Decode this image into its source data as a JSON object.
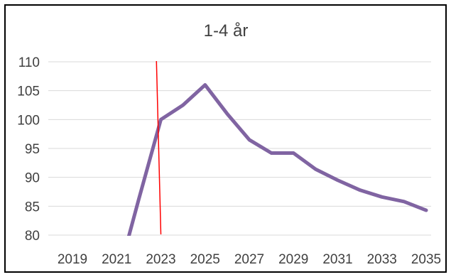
{
  "chart_data": {
    "type": "line",
    "title": "1-4 år",
    "xlabel": "",
    "ylabel": "",
    "x": [
      2019,
      2020,
      2021,
      2022,
      2023,
      2024,
      2025,
      2026,
      2027,
      2028,
      2029,
      2030,
      2031,
      2032,
      2033,
      2034,
      2035
    ],
    "xticks": [
      "2019",
      "2021",
      "2023",
      "2025",
      "2027",
      "2029",
      "2031",
      "2033",
      "2035"
    ],
    "yticks": [
      "80",
      "85",
      "90",
      "95",
      "100",
      "105",
      "110"
    ],
    "ylim": [
      80,
      110
    ],
    "xlim": [
      2019,
      2035
    ],
    "grid": "horizontal",
    "series": [
      {
        "color": "#8064A2",
        "values": [
          null,
          null,
          72,
          86.2,
          100,
          102.5,
          106,
          101,
          96.5,
          94.2,
          94.2,
          91.4,
          89.5,
          87.8,
          86.6,
          85.8,
          84.3
        ]
      }
    ],
    "reference_line": {
      "color": "#FF0000",
      "x_top": 2022.8,
      "x_bottom": 2023.0
    }
  }
}
